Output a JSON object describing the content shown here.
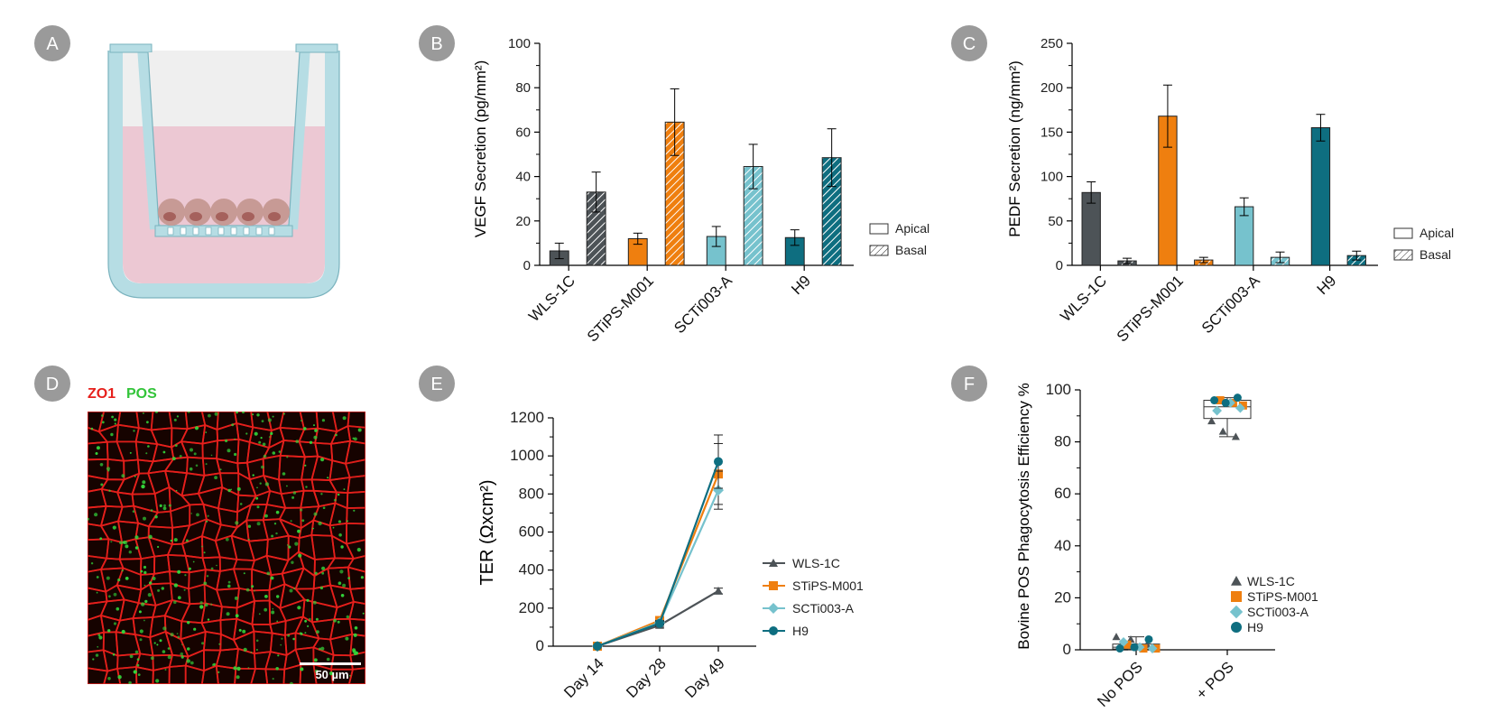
{
  "panel_letters": [
    "A",
    "B",
    "C",
    "D",
    "E",
    "F"
  ],
  "colors": {
    "WLS-1C": "#4d5357",
    "STiPS-M001": "#ef7f0f",
    "SCTi003-A": "#76c2cd",
    "H9": "#0e6e80",
    "badge": "#9a9a9a",
    "membrane_red": "#e6201c",
    "pos_green": "#33d43a"
  },
  "stain_labels": {
    "zo1": "ZO1",
    "pos": "POS"
  },
  "scalebar_label": "50 µm",
  "chart_data": [
    {
      "panel": "B",
      "type": "bar",
      "categories": [
        "WLS-1C",
        "STiPS-M001",
        "SCTi003-A",
        "H9"
      ],
      "series": [
        {
          "name": "Apical",
          "pattern": "solid",
          "values": [
            6.5,
            12,
            13,
            12.5
          ],
          "errors": [
            3.5,
            2.5,
            4.5,
            3.5
          ]
        },
        {
          "name": "Basal",
          "pattern": "hatched",
          "values": [
            33,
            64.5,
            44.5,
            48.5
          ],
          "errors": [
            9,
            15,
            10,
            13
          ]
        }
      ],
      "ylabel": "VEGF Secretion (pg/mm²)",
      "ylim": [
        0,
        100
      ],
      "yticks": [
        0,
        20,
        40,
        60,
        80,
        100
      ],
      "legend": "right"
    },
    {
      "panel": "C",
      "type": "bar",
      "categories": [
        "WLS-1C",
        "STiPS-M001",
        "SCTi003-A",
        "H9"
      ],
      "series": [
        {
          "name": "Apical",
          "pattern": "solid",
          "values": [
            82,
            168,
            66,
            155
          ],
          "errors": [
            12,
            35,
            10,
            15
          ]
        },
        {
          "name": "Basal",
          "pattern": "hatched",
          "values": [
            5,
            6,
            9,
            11
          ],
          "errors": [
            3,
            3,
            6,
            5
          ]
        }
      ],
      "ylabel": "PEDF Secretion (ng/mm²)",
      "ylim": [
        0,
        250
      ],
      "yticks": [
        0,
        50,
        100,
        150,
        200,
        250
      ],
      "legend": "right"
    },
    {
      "panel": "E",
      "type": "line",
      "x": [
        "Day 14",
        "Day 28",
        "Day 49"
      ],
      "series": [
        {
          "name": "WLS-1C",
          "marker": "triangle",
          "values": [
            0,
            110,
            290
          ],
          "errors": [
            5,
            10,
            15
          ]
        },
        {
          "name": "STiPS-M001",
          "marker": "square",
          "values": [
            0,
            135,
            905
          ],
          "errors": [
            5,
            10,
            160
          ]
        },
        {
          "name": "SCTi003-A",
          "marker": "diamond",
          "values": [
            0,
            125,
            820
          ],
          "errors": [
            5,
            10,
            100
          ]
        },
        {
          "name": "H9",
          "marker": "circle",
          "values": [
            0,
            120,
            970
          ],
          "errors": [
            5,
            10,
            140
          ]
        }
      ],
      "ylabel": "TER (Ωxcm²)",
      "ylim": [
        0,
        1200
      ],
      "yticks": [
        0,
        200,
        400,
        600,
        800,
        1000,
        1200
      ],
      "legend": "right"
    },
    {
      "panel": "F",
      "type": "scatter",
      "categories": [
        "No POS",
        "+ POS"
      ],
      "series": [
        {
          "name": "WLS-1C",
          "marker": "triangle",
          "no_pos": [
            5,
            4,
            2
          ],
          "plus_pos": [
            88,
            84,
            82
          ]
        },
        {
          "name": "STiPS-M001",
          "marker": "square",
          "no_pos": [
            2,
            0.5,
            0.5
          ],
          "plus_pos": [
            96,
            95,
            94
          ]
        },
        {
          "name": "SCTi003-A",
          "marker": "diamond",
          "no_pos": [
            1,
            0.5,
            3
          ],
          "plus_pos": [
            95,
            93,
            92
          ]
        },
        {
          "name": "H9",
          "marker": "circle",
          "no_pos": [
            4,
            0.5,
            1
          ],
          "plus_pos": [
            97,
            96,
            95
          ]
        }
      ],
      "boxes": [
        {
          "category": "No POS",
          "min": 0,
          "q1": 0.3,
          "median": 1,
          "q3": 2.2,
          "max": 5
        },
        {
          "category": "+ POS",
          "min": 82,
          "q1": 89,
          "median": 93.5,
          "q3": 96,
          "max": 97
        }
      ],
      "ylabel": "Bovine POS Phagocytosis Efficiency %",
      "ylim": [
        0,
        100
      ],
      "yticks": [
        0,
        20,
        40,
        60,
        80,
        100
      ],
      "legend": "inside-right"
    }
  ]
}
